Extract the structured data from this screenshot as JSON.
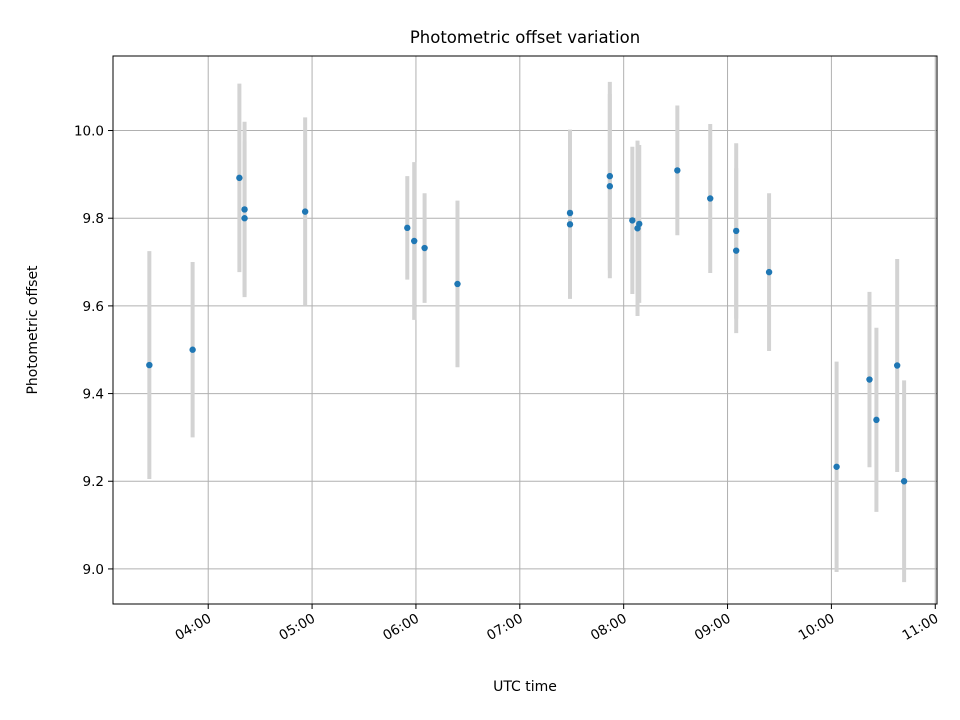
{
  "chart_data": {
    "type": "scatter",
    "title": "Photometric offset variation",
    "xlabel": "UTC time",
    "ylabel": "Photometric offset",
    "x_ticks": [
      "04:00",
      "05:00",
      "06:00",
      "07:00",
      "08:00",
      "09:00",
      "10:00",
      "11:00"
    ],
    "y_ticks": [
      "9.0",
      "9.2",
      "9.4",
      "9.6",
      "9.8",
      "10.0"
    ],
    "xlim": [
      "03:05",
      "11:01"
    ],
    "ylim": [
      8.92,
      10.17
    ],
    "grid": true,
    "point_color": "#1f77b4",
    "errorbar_color": "#d3d3d3",
    "series": [
      {
        "points": [
          {
            "t": "03:26",
            "y": 9.465,
            "err": 0.26
          },
          {
            "t": "03:51",
            "y": 9.5,
            "err": 0.2
          },
          {
            "t": "04:18",
            "y": 9.892,
            "err": 0.215
          },
          {
            "t": "04:21",
            "y": 9.82,
            "err": 0.2
          },
          {
            "t": "04:21",
            "y": 9.8,
            "err": 0.175
          },
          {
            "t": "04:56",
            "y": 9.815,
            "err": 0.215
          },
          {
            "t": "05:55",
            "y": 9.778,
            "err": 0.118
          },
          {
            "t": "05:59",
            "y": 9.748,
            "err": 0.18
          },
          {
            "t": "06:05",
            "y": 9.732,
            "err": 0.125
          },
          {
            "t": "06:24",
            "y": 9.65,
            "err": 0.19
          },
          {
            "t": "07:29",
            "y": 9.812,
            "err": 0.19
          },
          {
            "t": "07:29",
            "y": 9.786,
            "err": 0.17
          },
          {
            "t": "07:52",
            "y": 9.896,
            "err": 0.215
          },
          {
            "t": "07:52",
            "y": 9.873,
            "err": 0.21
          },
          {
            "t": "08:05",
            "y": 9.795,
            "err": 0.168
          },
          {
            "t": "08:08",
            "y": 9.777,
            "err": 0.2
          },
          {
            "t": "08:09",
            "y": 9.787,
            "err": 0.18
          },
          {
            "t": "08:31",
            "y": 9.909,
            "err": 0.148
          },
          {
            "t": "08:50",
            "y": 9.845,
            "err": 0.17
          },
          {
            "t": "09:05",
            "y": 9.771,
            "err": 0.2
          },
          {
            "t": "09:05",
            "y": 9.726,
            "err": 0.188
          },
          {
            "t": "09:24",
            "y": 9.677,
            "err": 0.18
          },
          {
            "t": "10:03",
            "y": 9.233,
            "err": 0.24
          },
          {
            "t": "10:22",
            "y": 9.432,
            "err": 0.2
          },
          {
            "t": "10:26",
            "y": 9.34,
            "err": 0.21
          },
          {
            "t": "10:38",
            "y": 9.464,
            "err": 0.243
          },
          {
            "t": "10:42",
            "y": 9.2,
            "err": 0.23
          }
        ]
      }
    ]
  }
}
